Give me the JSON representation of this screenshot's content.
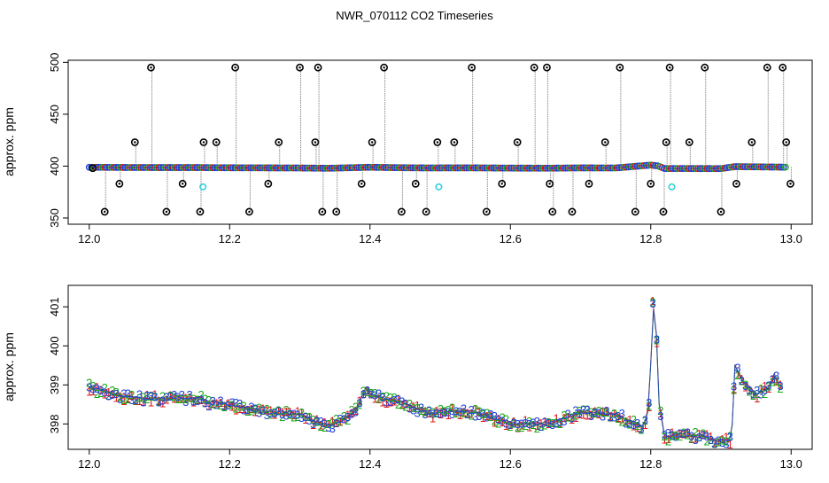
{
  "title": "NWR_070112  CO2 Timeseries",
  "colors": {
    "marker_blue": "#1f3fd6",
    "marker_green": "#1aa81a",
    "marker_red": "#e01818",
    "marker_cyan": "#35d0dc",
    "spike_line": "#8c8c8c",
    "outlier": "#000000"
  },
  "chart_data": [
    {
      "type": "scatter",
      "ylabel": "approx. ppm",
      "xlim": [
        11.97,
        13.03
      ],
      "ylim": [
        344,
        502
      ],
      "xticks": [
        "12.0",
        "12.2",
        "12.4",
        "12.6",
        "12.8",
        "13.0"
      ],
      "yticks": [
        "350",
        "400",
        "450",
        "500"
      ],
      "main_series": {
        "x": [
          12.0,
          12.05,
          12.1,
          12.16,
          12.17,
          12.2,
          12.25,
          12.3,
          12.33,
          12.34,
          12.4,
          12.45,
          12.49,
          12.5,
          12.55,
          12.6,
          12.66,
          12.67,
          12.7,
          12.75,
          12.8,
          12.81,
          12.82,
          12.83,
          12.9,
          12.92,
          12.99
        ],
        "y": [
          398.9,
          398.7,
          398.6,
          398.6,
          398.5,
          398.4,
          398.3,
          398.2,
          398.0,
          397.9,
          398.9,
          398.4,
          398.2,
          398.3,
          398.3,
          398.1,
          398.0,
          398.1,
          398.3,
          398.2,
          401.0,
          400.2,
          397.6,
          397.7,
          397.6,
          399.5,
          399.0
        ]
      },
      "outliers": {
        "x": [
          12.005,
          12.022,
          12.043,
          12.065,
          12.088,
          12.11,
          12.133,
          12.158,
          12.163,
          12.181,
          12.208,
          12.228,
          12.255,
          12.27,
          12.3,
          12.322,
          12.326,
          12.332,
          12.352,
          12.388,
          12.403,
          12.42,
          12.445,
          12.465,
          12.48,
          12.496,
          12.52,
          12.545,
          12.566,
          12.588,
          12.61,
          12.634,
          12.652,
          12.656,
          12.66,
          12.688,
          12.712,
          12.735,
          12.756,
          12.778,
          12.8,
          12.818,
          12.822,
          12.827,
          12.855,
          12.877,
          12.9,
          12.922,
          12.944,
          12.966,
          12.988,
          12.993,
          12.999
        ],
        "y": [
          398,
          356,
          383,
          423,
          495,
          356,
          383,
          356,
          423,
          423,
          495,
          356,
          383,
          423,
          495,
          423,
          495,
          356,
          356,
          383,
          423,
          495,
          356,
          383,
          356,
          423,
          423,
          495,
          356,
          383,
          423,
          495,
          495,
          383,
          356,
          356,
          383,
          423,
          495,
          356,
          383,
          356,
          423,
          495,
          423,
          495,
          356,
          383,
          423,
          495,
          495,
          423,
          383
        ]
      },
      "cyan_points": {
        "x": [
          12.162,
          12.498,
          12.83
        ],
        "y": [
          380,
          380,
          380
        ]
      }
    },
    {
      "type": "scatter",
      "ylabel": "approx. ppm",
      "xlim": [
        11.97,
        13.03
      ],
      "ylim": [
        397.35,
        401.55
      ],
      "xticks": [
        "12.0",
        "12.2",
        "12.4",
        "12.6",
        "12.8",
        "13.0"
      ],
      "yticks": [
        "398",
        "399",
        "400",
        "401"
      ],
      "legend_markers": [
        "1",
        "2",
        "3"
      ],
      "series": {
        "x": [
          12.0,
          12.05,
          12.1,
          12.16,
          12.17,
          12.2,
          12.25,
          12.3,
          12.33,
          12.34,
          12.36,
          12.38,
          12.395,
          12.4,
          12.45,
          12.49,
          12.5,
          12.55,
          12.6,
          12.66,
          12.67,
          12.7,
          12.75,
          12.79,
          12.798,
          12.803,
          12.808,
          12.812,
          12.82,
          12.83,
          12.87,
          12.9,
          12.915,
          12.92,
          12.93,
          12.95,
          12.97,
          12.975,
          12.98,
          12.985
        ],
        "y": [
          398.95,
          398.7,
          398.65,
          398.65,
          398.55,
          398.5,
          398.3,
          398.25,
          398.0,
          397.95,
          398.1,
          398.35,
          398.95,
          398.75,
          398.5,
          398.25,
          398.35,
          398.3,
          398.0,
          398.0,
          398.1,
          398.3,
          398.25,
          397.9,
          398.5,
          401.1,
          400.3,
          398.5,
          397.65,
          397.7,
          397.7,
          397.55,
          397.6,
          399.5,
          399.1,
          398.75,
          398.95,
          399.3,
          399.1,
          398.9
        ]
      }
    }
  ]
}
